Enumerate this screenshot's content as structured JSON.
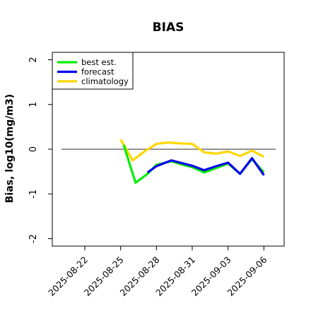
{
  "chart_data": {
    "type": "line",
    "title": "BIAS",
    "ylabel": "Bias, log10(mg/m3)",
    "xlabel": "",
    "ylim": [
      -2,
      2
    ],
    "yticks": [
      2,
      1,
      0,
      -1,
      -2
    ],
    "xtick_labels": [
      "2025-08-22",
      "2025-08-25",
      "2025-08-28",
      "2025-08-31",
      "2025-09-03",
      "2025-09-06"
    ],
    "xtick_days": [
      6,
      9,
      12,
      15,
      18,
      21
    ],
    "highlight_tick": "2025-08-28",
    "highlight_color": "#228b22",
    "reference_line": 0,
    "grid": false,
    "legend_position": "top-left",
    "series": [
      {
        "name": "best est.",
        "color": "#00ee00",
        "x": [
          9.25,
          10.25,
          11.25,
          12.0,
          13.25,
          14.0,
          15.0,
          16.0,
          17.0,
          18.0,
          19.0,
          20.0,
          21.0
        ],
        "y": [
          0.1,
          -0.75,
          -0.55,
          -0.35,
          -0.27,
          -0.33,
          -0.4,
          -0.52,
          -0.42,
          -0.32,
          -0.55,
          -0.22,
          -0.52
        ]
      },
      {
        "name": "forecast",
        "color": "#0000ee",
        "x": [
          11.25,
          12.0,
          13.25,
          14.0,
          15.0,
          16.0,
          17.0,
          18.0,
          19.0,
          20.0,
          21.0
        ],
        "y": [
          -0.52,
          -0.38,
          -0.25,
          -0.3,
          -0.37,
          -0.47,
          -0.38,
          -0.3,
          -0.55,
          -0.2,
          -0.58
        ]
      },
      {
        "name": "climatology",
        "color": "#ffd700",
        "x": [
          9.0,
          10.0,
          11.0,
          12.0,
          13.0,
          14.0,
          15.0,
          16.0,
          17.0,
          18.0,
          19.0,
          20.0,
          21.0
        ],
        "y": [
          0.22,
          -0.25,
          -0.05,
          0.12,
          0.15,
          0.13,
          0.12,
          -0.07,
          -0.1,
          -0.05,
          -0.15,
          -0.03,
          -0.17
        ]
      }
    ]
  }
}
